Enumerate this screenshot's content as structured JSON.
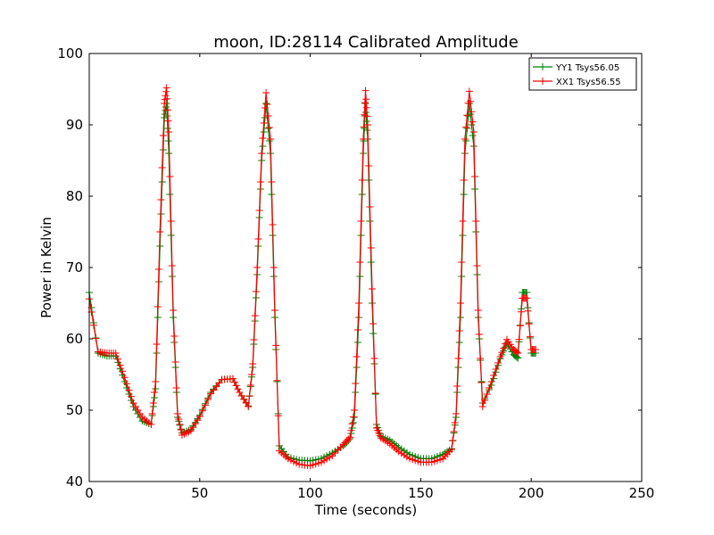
{
  "chart_data": {
    "type": "line",
    "title": "moon, ID:28114 Calibrated Amplitude",
    "xlabel": "Time (seconds)",
    "ylabel": "Power in Kelvin",
    "xlim": [
      0,
      250
    ],
    "ylim": [
      40,
      100
    ],
    "xticks": [
      "0",
      "50",
      "100",
      "150",
      "200",
      "250"
    ],
    "yticks": [
      "40",
      "50",
      "60",
      "70",
      "80",
      "90",
      "100"
    ],
    "grid": false,
    "legend_position": "top-right",
    "colors": {
      "YY1": "#008000",
      "XX1": "#ff0000"
    },
    "series": [
      {
        "name": "YY1 Tsys56.05",
        "color": "#008000",
        "marker": "plus",
        "x": [
          0,
          4,
          8,
          12,
          16,
          20,
          24,
          28,
          30,
          32,
          34,
          35,
          36,
          38,
          40,
          42,
          46,
          50,
          55,
          60,
          65,
          68,
          72,
          74,
          76,
          78,
          80,
          82,
          84,
          86,
          90,
          95,
          100,
          105,
          110,
          115,
          118,
          120,
          122,
          124,
          125,
          126,
          128,
          130,
          132,
          136,
          140,
          145,
          150,
          155,
          160,
          164,
          166,
          168,
          170,
          172,
          174,
          176,
          178,
          182,
          186,
          189,
          192,
          194,
          196,
          198,
          200,
          202
        ],
        "y": [
          66.5,
          58,
          57.6,
          57.6,
          54,
          50.5,
          48.5,
          48,
          53,
          73,
          91,
          93,
          86,
          63,
          49,
          46.8,
          47.3,
          49.3,
          52.5,
          54.3,
          54.4,
          52.5,
          50.6,
          56,
          69,
          85,
          93,
          86,
          63,
          45,
          43.4,
          43,
          42.9,
          43.2,
          44,
          45,
          46,
          49,
          63,
          86,
          93,
          88,
          65,
          48,
          46.3,
          45.8,
          44.8,
          43.8,
          43.2,
          43.2,
          43.8,
          44.6,
          49,
          63,
          86,
          93,
          87,
          63,
          51,
          53.5,
          57.2,
          59.4,
          57.8,
          57.3,
          66.5,
          66.5,
          58,
          58
        ]
      },
      {
        "name": "XX1 Tsys56.55",
        "color": "#ff0000",
        "marker": "plus",
        "x": [
          0,
          4,
          8,
          12,
          16,
          20,
          24,
          28,
          30,
          32,
          34,
          35,
          36,
          38,
          40,
          42,
          46,
          50,
          55,
          60,
          65,
          68,
          72,
          74,
          76,
          78,
          80,
          82,
          84,
          86,
          90,
          95,
          100,
          105,
          110,
          115,
          118,
          120,
          122,
          124,
          125,
          126,
          128,
          130,
          132,
          136,
          140,
          145,
          150,
          155,
          160,
          164,
          166,
          168,
          170,
          172,
          174,
          176,
          178,
          182,
          186,
          189,
          192,
          194,
          196,
          198,
          200,
          202
        ],
        "y": [
          65.6,
          58.2,
          58,
          58,
          54.6,
          51,
          49,
          48,
          54,
          75,
          93,
          95.2,
          89,
          64,
          49.5,
          46.5,
          47.1,
          49.1,
          52.3,
          54.3,
          54.4,
          52.5,
          50.5,
          56.5,
          70,
          86,
          94.5,
          88,
          64,
          44.3,
          43.2,
          42.4,
          42.2,
          42.7,
          43.6,
          45.2,
          46.2,
          50,
          65,
          88,
          94.8,
          90,
          67,
          47.5,
          46.1,
          45.3,
          44.2,
          43.2,
          42.7,
          42.7,
          43.2,
          44.5,
          49.5,
          65,
          88,
          94.7,
          89,
          64,
          50.5,
          54,
          57.5,
          59.9,
          58.5,
          58,
          65.7,
          65.7,
          58.5,
          58.5
        ]
      }
    ]
  }
}
